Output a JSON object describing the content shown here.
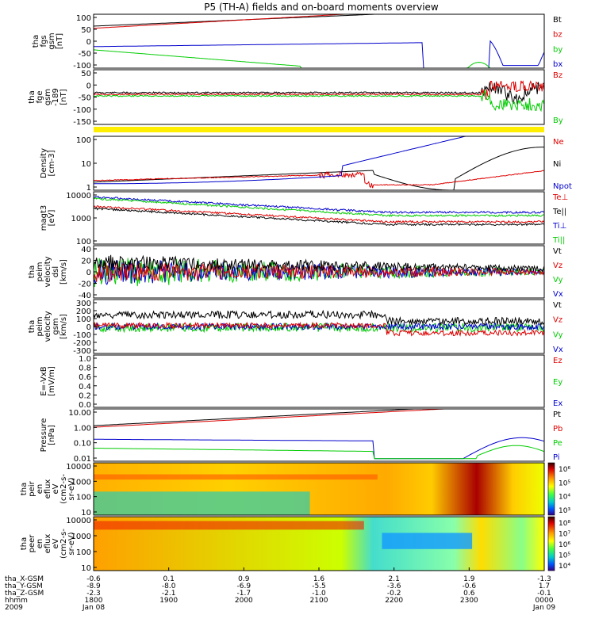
{
  "chart_data": {
    "type": "line",
    "title": "P5 (TH-A) fields and on-board moments overview",
    "panels": [
      {
        "id": "fgs",
        "ylabel": [
          "tha",
          "fgs",
          "gsm",
          "[nT]"
        ],
        "yticks": [
          "100",
          "50",
          "0",
          "-50",
          "-100"
        ],
        "ylim": [
          -100,
          100
        ],
        "legend": [
          {
            "label": "Bt",
            "color": "#000000"
          },
          {
            "label": "bz",
            "color": "#dd0000"
          },
          {
            "label": "by",
            "color": "#00cc00"
          },
          {
            "label": "bx",
            "color": "#0000cc"
          }
        ]
      },
      {
        "id": "fge",
        "ylabel": [
          "tha",
          "fge",
          "gsm",
          "-189",
          "[nT]"
        ],
        "yticks": [
          "50",
          "0",
          "-50",
          "-100",
          "-150"
        ],
        "ylim": [
          -180,
          60
        ],
        "legend": [
          {
            "label": "Bz",
            "color": "#dd0000"
          },
          {
            "label": "By",
            "color": "#00cc00"
          }
        ]
      },
      {
        "id": "density",
        "ylabel": [
          "Density",
          "[cm-3]"
        ],
        "yticks": [
          "100",
          "10",
          "1"
        ],
        "ylim": [
          0.4,
          150
        ],
        "legend": [
          {
            "label": "Ne",
            "color": "#dd0000"
          },
          {
            "label": "Ni",
            "color": "#000000"
          },
          {
            "label": "Npot",
            "color": "#0000cc"
          }
        ]
      },
      {
        "id": "temp",
        "ylabel": [
          "magt3",
          "[eV]"
        ],
        "yticks": [
          "10000",
          "1000",
          "100"
        ],
        "ylim": [
          30,
          20000
        ],
        "legend": [
          {
            "label": "Te⊥",
            "color": "#dd0000"
          },
          {
            "label": "Te||",
            "color": "#000000"
          },
          {
            "label": "Ti⊥",
            "color": "#0000cc"
          },
          {
            "label": "Ti||",
            "color": "#00cc00"
          }
        ]
      },
      {
        "id": "peim",
        "ylabel": [
          "tha",
          "peim",
          "velocity",
          "dsl",
          "[km/s]"
        ],
        "yticks": [
          "40",
          "20",
          "0",
          "-20",
          "-40"
        ],
        "ylim": [
          -40,
          40
        ],
        "legend": [
          {
            "label": "Vt",
            "color": "#000000"
          },
          {
            "label": "Vz",
            "color": "#dd0000"
          },
          {
            "label": "Vy",
            "color": "#00cc00"
          },
          {
            "label": "Vx",
            "color": "#0000cc"
          }
        ]
      },
      {
        "id": "peir",
        "ylabel": [
          "tha",
          "peim",
          "velocity",
          "gsm",
          "[km/s]"
        ],
        "yticks": [
          "300",
          "200",
          "100",
          "0",
          "-100",
          "-200",
          "-300"
        ],
        "ylim": [
          -300,
          300
        ],
        "legend": [
          {
            "label": "Vt",
            "color": "#000000"
          },
          {
            "label": "Vz",
            "color": "#dd0000"
          },
          {
            "label": "Vy",
            "color": "#00cc00"
          },
          {
            "label": "Vx",
            "color": "#0000cc"
          }
        ]
      },
      {
        "id": "efield",
        "ylabel": [
          "E=-VxB",
          "[mV/m]"
        ],
        "yticks": [
          "1.0",
          "0.8",
          "0.6",
          "0.4",
          "0.2",
          "0.0"
        ],
        "ylim": [
          0,
          1
        ],
        "legend": [
          {
            "label": "Ez",
            "color": "#dd0000"
          },
          {
            "label": "Ey",
            "color": "#00cc00"
          },
          {
            "label": "Ex",
            "color": "#0000cc"
          }
        ]
      },
      {
        "id": "pressure",
        "ylabel": [
          "Pressure",
          "[nPa]"
        ],
        "yticks": [
          "10.00",
          "1.00",
          "0.10",
          "0.01"
        ],
        "ylim": [
          0.006,
          20
        ],
        "legend": [
          {
            "label": "Pt",
            "color": "#000000"
          },
          {
            "label": "Pb",
            "color": "#dd0000"
          },
          {
            "label": "Pe",
            "color": "#00cc00"
          },
          {
            "label": "Pi",
            "color": "#0000cc"
          }
        ]
      },
      {
        "id": "ion_spec",
        "ylabel": [
          "tha",
          "peir",
          "en",
          "eflux",
          "eV",
          "(cm2-s-",
          "sr-eV)"
        ],
        "yticks": [
          "10000",
          "1000",
          "100",
          "10"
        ],
        "colorbar": [
          "10⁶",
          "10⁵",
          "10⁴",
          "10³"
        ]
      },
      {
        "id": "ele_spec",
        "ylabel": [
          "tha",
          "peer",
          "en",
          "eflux",
          "eV",
          "(cm2-s-",
          "sr-eV)"
        ],
        "yticks": [
          "10000",
          "1000",
          "100",
          "10"
        ],
        "colorbar": [
          "10⁸",
          "10⁷",
          "10⁶",
          "10⁵",
          "10⁴"
        ]
      }
    ],
    "xaxis": {
      "rows": [
        {
          "label": "tha_X-GSM",
          "values": [
            "-0.6",
            "0.1",
            "0.9",
            "1.6",
            "2.1",
            "1.9",
            "-1.3"
          ]
        },
        {
          "label": "tha_Y-GSM",
          "values": [
            "-8.9",
            "-8.0",
            "-6.9",
            "-5.5",
            "-3.6",
            "-0.6",
            "1.7"
          ]
        },
        {
          "label": "tha_Z-GSM",
          "values": [
            "-2.3",
            "-2.1",
            "-1.7",
            "-1.0",
            "-0.2",
            "0.6",
            "-0.1"
          ]
        },
        {
          "label": "hhmm",
          "values": [
            "1800",
            "1900",
            "2000",
            "2100",
            "2200",
            "2300",
            "0000"
          ]
        },
        {
          "label": "2009",
          "values": [
            "Jan 08",
            "",
            "",
            "",
            "",
            "",
            "Jan 09"
          ]
        }
      ]
    }
  }
}
